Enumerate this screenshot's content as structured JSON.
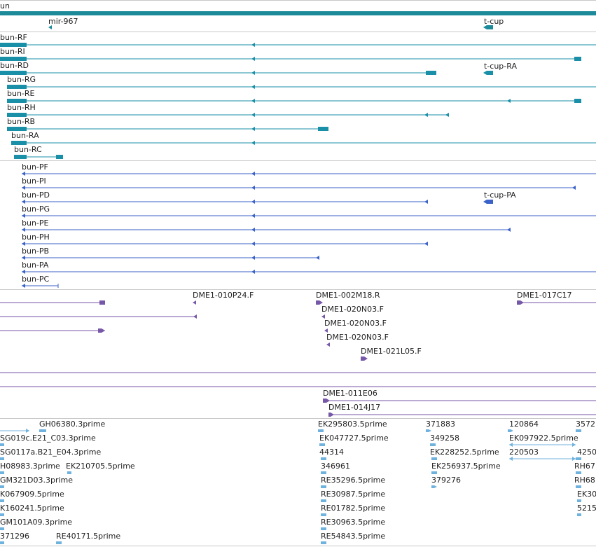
{
  "colors": {
    "gene": "#1d8a9a",
    "transcript": "#1a8fa8",
    "protein": "#3a62c9",
    "clone": "#7757a8",
    "est": "#6fb2de",
    "separator": "#c8c8c8"
  },
  "gene_track": {
    "labels": [
      "un",
      "mir-967",
      "t-cup"
    ]
  },
  "transcripts": {
    "labels": [
      "bun-RF",
      "bun-RI",
      "bun-RD",
      "t-cup-RA",
      "bun-RG",
      "bun-RE",
      "bun-RH",
      "bun-RB",
      "bun-RA",
      "bun-RC"
    ]
  },
  "proteins": {
    "labels": [
      "bun-PF",
      "bun-PI",
      "bun-PD",
      "t-cup-PA",
      "bun-PG",
      "bun-PE",
      "bun-PH",
      "bun-PB",
      "bun-PA",
      "bun-PC"
    ]
  },
  "clones": {
    "labels": [
      "DME1-010P24.F",
      "DME1-002M18.R",
      "DME1-017C17",
      "DME1-020N03.F",
      "DME1-020N03.F",
      "DME1-020N03.F",
      "DME1-021L05.F",
      "DME1-011E06",
      "DME1-014J17"
    ]
  },
  "ests": {
    "labels": [
      "GH06380.3prime",
      "EK295803.5prime",
      "371883",
      "120864",
      "3572",
      "SG019c.E21_C03.3prime",
      "EK047727.5prime",
      "349258",
      "EK097922.5prime",
      "SG0117a.B21_E04.3prime",
      "44314",
      "EK228252.5prime",
      "220503",
      "4250",
      "H08983.3prime",
      "EK210705.5prime",
      "346961",
      "EK256937.5prime",
      "RH67",
      "GM321D03.3prime",
      "RE35296.5prime",
      "379276",
      "RH68",
      "K067909.5prime",
      "RE30987.5prime",
      "EK30",
      "K160241.5prime",
      "RE01782.5prime",
      "5215",
      "GM101A09.3prime",
      "RE30963.5prime",
      "371296",
      "RE40171.5prime",
      "RE54843.5prime"
    ]
  }
}
